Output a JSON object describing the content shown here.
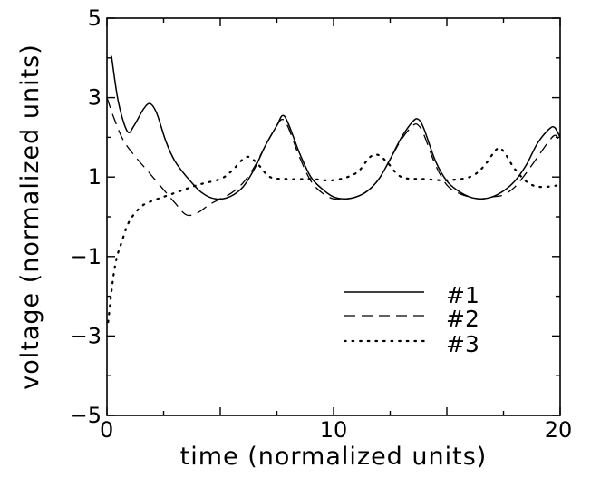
{
  "chart_data": {
    "type": "line",
    "title": "",
    "xlabel": "time (normalized units)",
    "ylabel": "voltage (normalized units)",
    "xlim": [
      0,
      20
    ],
    "ylim": [
      -5,
      5
    ],
    "x_ticks": [
      0,
      10,
      20
    ],
    "y_ticks": [
      5,
      3,
      1,
      -1,
      -3,
      -5
    ],
    "x_tick_labels": [
      "0",
      "10",
      "20"
    ],
    "y_tick_labels": [
      "5",
      "3",
      "1",
      "−1",
      "−3",
      "−5"
    ],
    "grid": false,
    "legend_position": "lower-right",
    "series": [
      {
        "name": "#1",
        "style": "solid",
        "points": [
          [
            0.2,
            4.05
          ],
          [
            0.5,
            2.9
          ],
          [
            0.9,
            2.15
          ],
          [
            1.2,
            2.3
          ],
          [
            1.6,
            2.7
          ],
          [
            1.9,
            2.85
          ],
          [
            2.2,
            2.6
          ],
          [
            2.6,
            1.9
          ],
          [
            3.0,
            1.4
          ],
          [
            3.6,
            0.95
          ],
          [
            4.2,
            0.6
          ],
          [
            4.8,
            0.45
          ],
          [
            5.4,
            0.5
          ],
          [
            6.0,
            0.75
          ],
          [
            6.5,
            1.2
          ],
          [
            7.0,
            1.8
          ],
          [
            7.5,
            2.3
          ],
          [
            7.75,
            2.55
          ],
          [
            8.0,
            2.35
          ],
          [
            8.5,
            1.6
          ],
          [
            9.0,
            1.0
          ],
          [
            9.5,
            0.7
          ],
          [
            10.0,
            0.5
          ],
          [
            10.5,
            0.45
          ],
          [
            11.0,
            0.5
          ],
          [
            11.5,
            0.65
          ],
          [
            12.0,
            0.95
          ],
          [
            12.5,
            1.45
          ],
          [
            13.0,
            2.0
          ],
          [
            13.5,
            2.4
          ],
          [
            13.75,
            2.45
          ],
          [
            14.0,
            2.2
          ],
          [
            14.5,
            1.4
          ],
          [
            15.0,
            0.9
          ],
          [
            15.5,
            0.65
          ],
          [
            16.0,
            0.5
          ],
          [
            16.5,
            0.45
          ],
          [
            17.0,
            0.5
          ],
          [
            17.5,
            0.65
          ],
          [
            18.0,
            0.9
          ],
          [
            18.5,
            1.3
          ],
          [
            19.0,
            1.85
          ],
          [
            19.5,
            2.2
          ],
          [
            19.75,
            2.25
          ],
          [
            20.0,
            2.0
          ]
        ]
      },
      {
        "name": "#2",
        "style": "dashed",
        "points": [
          [
            0.0,
            3.0
          ],
          [
            0.3,
            2.5
          ],
          [
            0.7,
            1.95
          ],
          [
            1.2,
            1.55
          ],
          [
            1.8,
            1.15
          ],
          [
            2.4,
            0.75
          ],
          [
            3.0,
            0.35
          ],
          [
            3.5,
            0.05
          ],
          [
            4.0,
            0.1
          ],
          [
            4.5,
            0.3
          ],
          [
            5.0,
            0.45
          ],
          [
            5.5,
            0.6
          ],
          [
            6.0,
            0.85
          ],
          [
            6.5,
            1.25
          ],
          [
            7.0,
            1.8
          ],
          [
            7.5,
            2.3
          ],
          [
            7.75,
            2.45
          ],
          [
            8.0,
            2.25
          ],
          [
            8.5,
            1.5
          ],
          [
            9.0,
            0.9
          ],
          [
            9.5,
            0.6
          ],
          [
            10.0,
            0.45
          ],
          [
            10.5,
            0.45
          ],
          [
            11.0,
            0.5
          ],
          [
            11.5,
            0.65
          ],
          [
            12.0,
            0.95
          ],
          [
            12.5,
            1.45
          ],
          [
            13.0,
            1.95
          ],
          [
            13.5,
            2.3
          ],
          [
            13.75,
            2.3
          ],
          [
            14.0,
            2.05
          ],
          [
            14.5,
            1.3
          ],
          [
            15.0,
            0.8
          ],
          [
            15.5,
            0.6
          ],
          [
            16.0,
            0.5
          ],
          [
            16.5,
            0.45
          ],
          [
            17.0,
            0.5
          ],
          [
            17.5,
            0.55
          ],
          [
            18.0,
            0.75
          ],
          [
            18.5,
            1.1
          ],
          [
            19.0,
            1.5
          ],
          [
            19.5,
            1.9
          ],
          [
            19.8,
            2.05
          ],
          [
            20.0,
            1.8
          ]
        ]
      },
      {
        "name": "#3",
        "style": "dotted",
        "points": [
          [
            0.05,
            -2.65
          ],
          [
            0.35,
            -1.25
          ],
          [
            0.7,
            -0.55
          ],
          [
            1.0,
            -0.1
          ],
          [
            1.5,
            0.25
          ],
          [
            2.0,
            0.4
          ],
          [
            3.0,
            0.6
          ],
          [
            4.0,
            0.8
          ],
          [
            5.0,
            0.95
          ],
          [
            5.5,
            1.15
          ],
          [
            6.0,
            1.45
          ],
          [
            6.3,
            1.5
          ],
          [
            6.7,
            1.3
          ],
          [
            7.2,
            1.0
          ],
          [
            8.0,
            0.95
          ],
          [
            9.0,
            0.95
          ],
          [
            10.0,
            0.92
          ],
          [
            11.0,
            1.1
          ],
          [
            11.6,
            1.5
          ],
          [
            12.0,
            1.55
          ],
          [
            12.4,
            1.35
          ],
          [
            13.0,
            1.0
          ],
          [
            14.0,
            0.95
          ],
          [
            15.0,
            0.92
          ],
          [
            16.0,
            1.0
          ],
          [
            16.6,
            1.25
          ],
          [
            17.2,
            1.7
          ],
          [
            17.5,
            1.65
          ],
          [
            18.0,
            1.2
          ],
          [
            18.6,
            0.85
          ],
          [
            19.2,
            0.75
          ],
          [
            20.0,
            0.8
          ]
        ]
      }
    ]
  }
}
